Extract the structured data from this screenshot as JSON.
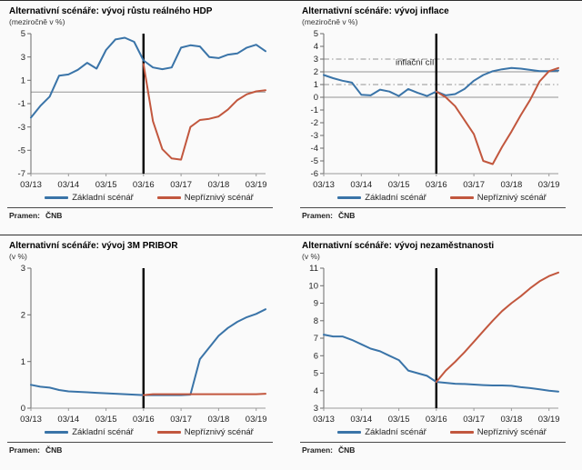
{
  "source_label": "Pramen:",
  "source_value": "ČNB",
  "legend": {
    "baseline": "Základní scénář",
    "adverse": "Nepříznivý scénář"
  },
  "colors": {
    "baseline": "#3a74a8",
    "adverse": "#c2573e",
    "event_line": "#000000",
    "grid": "#949494",
    "axis_y": "#6b6b6b",
    "axis_x": "#9a9a9a",
    "tick_label": "#222222"
  },
  "x_tick_labels": [
    "03/13",
    "03/14",
    "03/15",
    "03/16",
    "03/17",
    "03/18",
    "03/19"
  ],
  "x_tick_indices": [
    0,
    4,
    8,
    12,
    16,
    20,
    24
  ],
  "n_points": 26,
  "event_line_index": 12,
  "chart_data": [
    {
      "type": "line",
      "title": "Alternativní scénáře: vývoj růstu reálného HDP",
      "subtitle": "(meziročně v %)",
      "ylabel": "",
      "ylim": [
        -7,
        5
      ],
      "y_ticks": [
        5,
        3,
        1,
        -1,
        -3,
        -5,
        -7
      ],
      "gridlines": [
        {
          "y": 0,
          "style": "solid"
        }
      ],
      "series": [
        {
          "name": "Základní scénář",
          "color_key": "baseline",
          "start_index": 0,
          "values": [
            -2.2,
            -1.2,
            -0.4,
            1.4,
            1.5,
            1.9,
            2.5,
            2.0,
            3.6,
            4.5,
            4.65,
            4.3,
            2.7,
            2.1,
            1.95,
            2.1,
            3.8,
            4.0,
            3.9,
            3.0,
            2.9,
            3.2,
            3.3,
            3.8,
            4.05,
            3.5
          ]
        },
        {
          "name": "Nepříznivý scénář",
          "color_key": "adverse",
          "start_index": 12,
          "values": [
            2.4,
            -2.5,
            -4.9,
            -5.7,
            -5.8,
            -3.0,
            -2.4,
            -2.3,
            -2.1,
            -1.5,
            -0.7,
            -0.2,
            0.05,
            0.15
          ]
        }
      ]
    },
    {
      "type": "line",
      "title": "Alternativní scénáře: vývoj inflace",
      "subtitle": "(meziročně v %)",
      "ylabel": "",
      "ylim": [
        -6,
        5
      ],
      "y_ticks": [
        5,
        4,
        3,
        2,
        1,
        0,
        -1,
        -2,
        -3,
        -4,
        -5,
        -6
      ],
      "gridlines": [
        {
          "y": 0,
          "style": "solid"
        },
        {
          "y": 1,
          "style": "dashdot"
        },
        {
          "y": 2,
          "style": "solid"
        },
        {
          "y": 3,
          "style": "dashdot"
        }
      ],
      "annotation": {
        "text": "inflační cíl",
        "x_index": 9.7,
        "y": 2.55
      },
      "series": [
        {
          "name": "Základní scénář",
          "color_key": "baseline",
          "start_index": 0,
          "values": [
            1.75,
            1.5,
            1.3,
            1.15,
            0.2,
            0.15,
            0.6,
            0.45,
            0.1,
            0.65,
            0.35,
            0.1,
            0.45,
            0.15,
            0.25,
            0.65,
            1.3,
            1.75,
            2.05,
            2.2,
            2.3,
            2.25,
            2.15,
            2.05,
            2.05,
            2.1
          ]
        },
        {
          "name": "Nepříznivý scénář",
          "color_key": "adverse",
          "start_index": 12,
          "values": [
            0.45,
            0.0,
            -0.7,
            -1.8,
            -2.9,
            -5.0,
            -5.25,
            -3.9,
            -2.7,
            -1.4,
            -0.2,
            1.25,
            2.05,
            2.3
          ]
        }
      ]
    },
    {
      "type": "line",
      "title": "Alternativní scénáře: vývoj 3M PRIBOR",
      "subtitle": "(v %)",
      "ylabel": "",
      "ylim": [
        0,
        3
      ],
      "y_ticks": [
        3,
        2,
        1,
        0
      ],
      "gridlines": [],
      "series": [
        {
          "name": "Základní scénář",
          "color_key": "baseline",
          "start_index": 0,
          "values": [
            0.5,
            0.46,
            0.44,
            0.39,
            0.36,
            0.35,
            0.34,
            0.33,
            0.32,
            0.31,
            0.3,
            0.29,
            0.28,
            0.28,
            0.28,
            0.28,
            0.28,
            0.29,
            1.05,
            1.3,
            1.55,
            1.72,
            1.85,
            1.95,
            2.02,
            2.12
          ]
        },
        {
          "name": "Nepříznivý scénář",
          "color_key": "adverse",
          "start_index": 12,
          "values": [
            0.28,
            0.3,
            0.3,
            0.3,
            0.3,
            0.3,
            0.3,
            0.3,
            0.3,
            0.3,
            0.3,
            0.3,
            0.3,
            0.31
          ]
        }
      ]
    },
    {
      "type": "line",
      "title": "Alternativní scénáře: vývoj nezaměstnanosti",
      "subtitle": "(v %)",
      "ylabel": "",
      "ylim": [
        3,
        11
      ],
      "y_ticks": [
        11,
        10,
        9,
        8,
        7,
        6,
        5,
        4,
        3
      ],
      "gridlines": [],
      "series": [
        {
          "name": "Základní scénář",
          "color_key": "baseline",
          "start_index": 0,
          "values": [
            7.2,
            7.1,
            7.1,
            6.9,
            6.65,
            6.4,
            6.25,
            6.0,
            5.75,
            5.15,
            5.0,
            4.85,
            4.5,
            4.45,
            4.4,
            4.38,
            4.35,
            4.32,
            4.3,
            4.3,
            4.28,
            4.2,
            4.15,
            4.08,
            4.0,
            3.95
          ]
        },
        {
          "name": "Nepříznivý scénář",
          "color_key": "adverse",
          "start_index": 12,
          "values": [
            4.5,
            5.15,
            5.65,
            6.2,
            6.8,
            7.4,
            8.0,
            8.55,
            9.0,
            9.4,
            9.85,
            10.25,
            10.55,
            10.75
          ]
        }
      ]
    }
  ]
}
